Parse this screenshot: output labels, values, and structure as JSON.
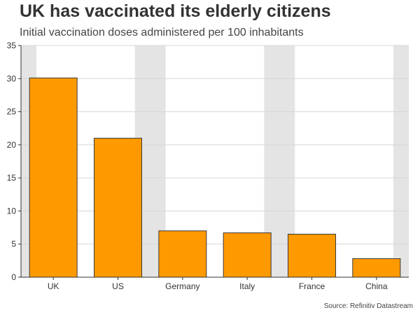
{
  "header": {
    "title": "UK has vaccinated its elderly citizens",
    "subtitle": "Initial vaccination doses administered per 100 inhabitants"
  },
  "footer": {
    "source": "Source: Refinitiv Datastream"
  },
  "colors": {
    "bar": "#ff9900",
    "bar_stroke": "#3a3a3a",
    "band": "#e4e4e4",
    "grid": "#d6d6d6",
    "axis": "#333333"
  },
  "chart_data": {
    "type": "bar",
    "title": "UK has vaccinated its elderly citizens",
    "subtitle": "Initial vaccination doses administered per 100 inhabitants",
    "categories": [
      "UK",
      "US",
      "Germany",
      "Italy",
      "France",
      "China"
    ],
    "values": [
      30.1,
      21.0,
      7.0,
      6.7,
      6.5,
      2.8
    ],
    "xlabel": "",
    "ylabel": "",
    "ylim": [
      0,
      35
    ],
    "yticks": [
      0,
      5,
      10,
      15,
      20,
      25,
      30,
      35
    ],
    "grid": true
  }
}
